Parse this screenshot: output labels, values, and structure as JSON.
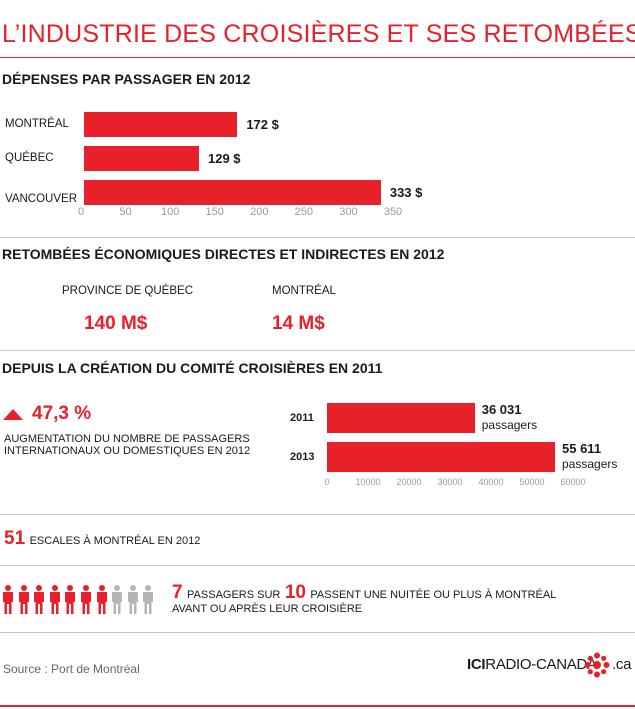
{
  "title": "L’INDUSTRIE DES CROISIÈRES ET SES RETOMBÉES",
  "section1": {
    "heading": "DÉPENSES PAR PASSAGER EN 2012"
  },
  "section2": {
    "heading": "RETOMBÉES ÉCONOMIQUES DIRECTES ET INDIRECTES EN 2012",
    "items": [
      {
        "label": "PROVINCE DE QUÉBEC",
        "value": "140 M$"
      },
      {
        "label": "MONTRÉAL",
        "value": "14 M$"
      }
    ]
  },
  "section3": {
    "heading": "DEPUIS LA CRÉATION DU COMITÉ CROISIÈRES EN 2011",
    "percent": "47,3 %",
    "percent_desc_line1": "AUGMENTATION DU NOMBRE DE PASSAGERS",
    "percent_desc_line2": "INTERNATIONAUX OU DOMESTIQUES EN 2012"
  },
  "escales": {
    "number": "51",
    "text": "ESCALES À MONTRÉAL EN 2012"
  },
  "passengers": {
    "highlighted": 7,
    "total": 10,
    "num1": "7",
    "text1": "PASSAGERS SUR",
    "num2": "10",
    "text2": "PASSENT UNE NUITÉE OU PLUS À MONTRÉAL",
    "line2": "AVANT OU APRÈS LEUR CROISIÈRE",
    "color_on": "#e8202a",
    "color_off": "#b5b5b5"
  },
  "source": "Source : Port de Montréal",
  "logo": {
    "ici": "ICI",
    "name": "RADIO-CANADA",
    "suffix": ".ca",
    "icon": "radio-canada-gem-icon"
  },
  "colors": {
    "accent": "#e8202a",
    "axis": "#9a9a9a"
  },
  "chart_data": [
    {
      "type": "bar",
      "orientation": "horizontal",
      "title": "DÉPENSES PAR PASSAGER EN 2012",
      "categories": [
        "MONTRÉAL",
        "QUÉBEC",
        "VANCOUVER"
      ],
      "values": [
        172,
        129,
        333
      ],
      "value_labels": [
        "172 $",
        "129 $",
        "333 $"
      ],
      "xlim": [
        0,
        350
      ],
      "xticks": [
        0,
        50,
        100,
        150,
        200,
        250,
        300,
        350
      ],
      "grid": false
    },
    {
      "type": "bar",
      "orientation": "horizontal",
      "categories": [
        "2011",
        "2013"
      ],
      "values": [
        36031,
        55611
      ],
      "value_labels": [
        "36 031",
        "55 611"
      ],
      "value_unit": "passagers",
      "xlim": [
        0,
        60000
      ],
      "xticks": [
        0,
        10000,
        20000,
        30000,
        40000,
        50000,
        60000
      ],
      "grid": false
    }
  ]
}
